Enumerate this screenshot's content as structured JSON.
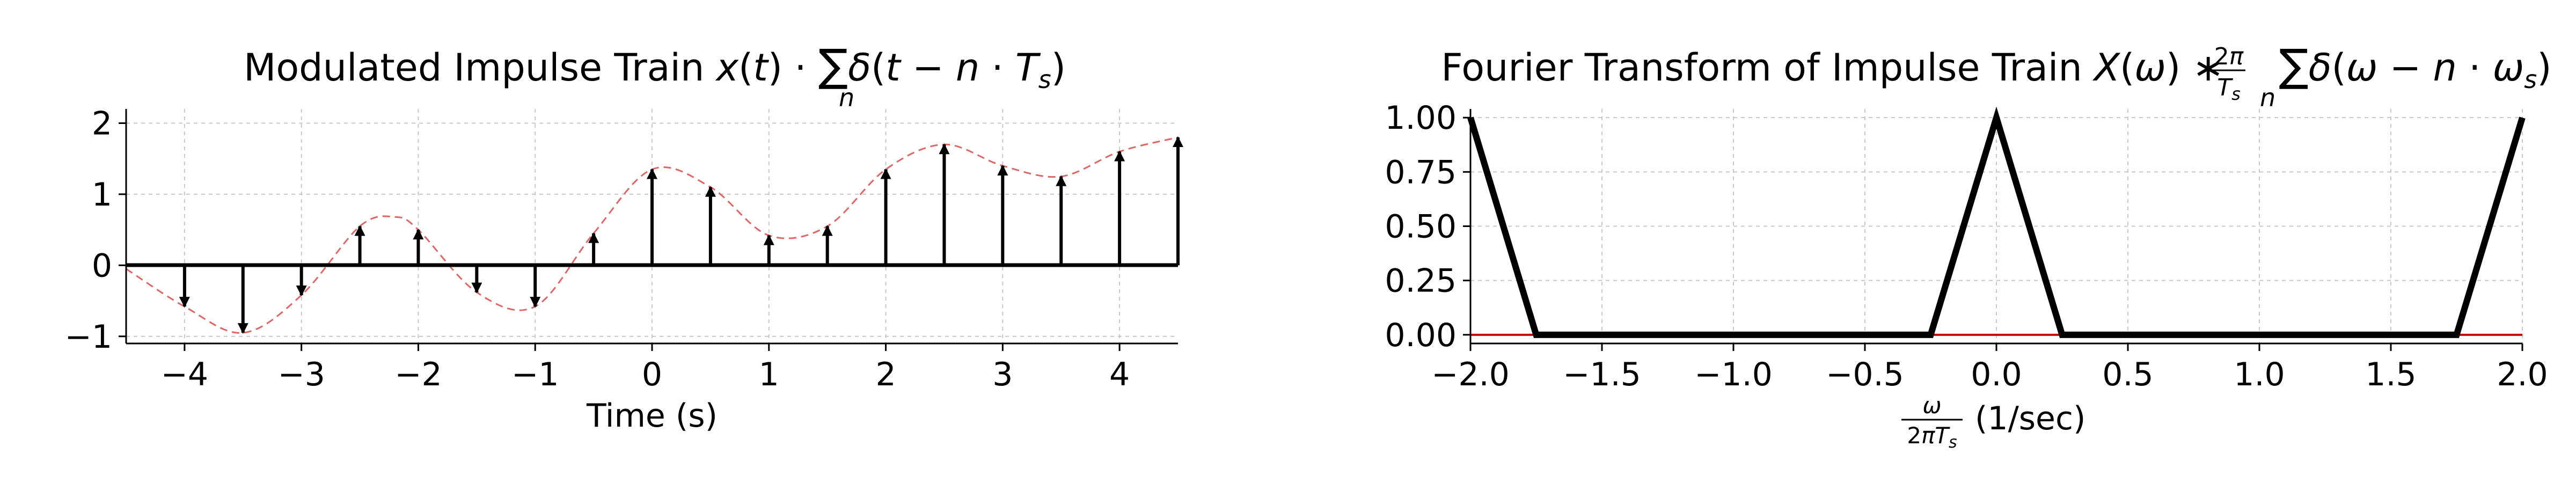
{
  "chart_data": [
    {
      "type": "stem",
      "title": "Modulated Impulse Train",
      "title_math": "x(t)·∑δ(t−n·Ts)",
      "xlabel": "Time (s)",
      "ylabel": "",
      "xlim": [
        -4.5,
        4.5
      ],
      "ylim": [
        -1.1,
        2.2
      ],
      "x_ticks": [
        -4,
        -3,
        -2,
        -1,
        0,
        1,
        2,
        3,
        4
      ],
      "x_tick_labels": [
        "−4",
        "−3",
        "−2",
        "−1",
        "0",
        "1",
        "2",
        "3",
        "4"
      ],
      "y_ticks": [
        -1,
        0,
        1,
        2
      ],
      "y_tick_labels": [
        "−1",
        "0",
        "1",
        "2"
      ],
      "grid": true,
      "stems": {
        "x": [
          -4,
          -3.5,
          -3,
          -2.5,
          -2,
          -1.5,
          -1,
          -0.5,
          0,
          0.5,
          1,
          1.5,
          2,
          2.5,
          3,
          3.5,
          4,
          4.5
        ],
        "y": [
          -0.58,
          -0.95,
          -0.42,
          0.55,
          0.5,
          -0.38,
          -0.58,
          0.45,
          1.35,
          1.1,
          0.42,
          0.55,
          1.35,
          1.7,
          1.4,
          1.25,
          1.6,
          1.8
        ],
        "color": "#000000"
      },
      "envelope": {
        "x": [
          -4.5,
          -4,
          -3.5,
          -3,
          -2.5,
          -2.2,
          -2,
          -1.5,
          -1,
          -0.5,
          0,
          0.5,
          1,
          1.5,
          2,
          2.5,
          3,
          3.5,
          4,
          4.5
        ],
        "y": [
          -0.05,
          -0.58,
          -0.95,
          -0.42,
          0.55,
          0.68,
          0.5,
          -0.38,
          -0.58,
          0.45,
          1.35,
          1.1,
          0.42,
          0.55,
          1.35,
          1.7,
          1.4,
          1.25,
          1.6,
          1.8
        ],
        "color": "#e06666",
        "style": "dashed"
      }
    },
    {
      "type": "line",
      "title": "Fourier Transform of Impulse Train",
      "title_math": "X(ω)∗(2π/Ts)∑δ(ω−n·ωs)",
      "xlabel": "ω/2πTs (1/sec)",
      "ylabel": "",
      "xlim": [
        -2.0,
        2.0
      ],
      "ylim": [
        -0.04,
        1.04
      ],
      "x_ticks": [
        -2.0,
        -1.5,
        -1.0,
        -0.5,
        0.0,
        0.5,
        1.0,
        1.5,
        2.0
      ],
      "x_tick_labels": [
        "−2.0",
        "−1.5",
        "−1.0",
        "−0.5",
        "0.0",
        "0.5",
        "1.0",
        "1.5",
        "2.0"
      ],
      "y_ticks": [
        0.0,
        0.25,
        0.5,
        0.75,
        1.0
      ],
      "y_tick_labels": [
        "0.00",
        "0.25",
        "0.50",
        "0.75",
        "1.00"
      ],
      "grid": true,
      "series": [
        {
          "x": [
            -2.0,
            -1.75,
            -0.25,
            0.0,
            0.25,
            1.75,
            2.0
          ],
          "values": [
            1.0,
            0.0,
            0.0,
            1.0,
            0.0,
            0.0,
            1.0
          ],
          "color": "#000000"
        }
      ],
      "baseline": {
        "y": 0.0,
        "color": "#cc0000"
      }
    }
  ]
}
